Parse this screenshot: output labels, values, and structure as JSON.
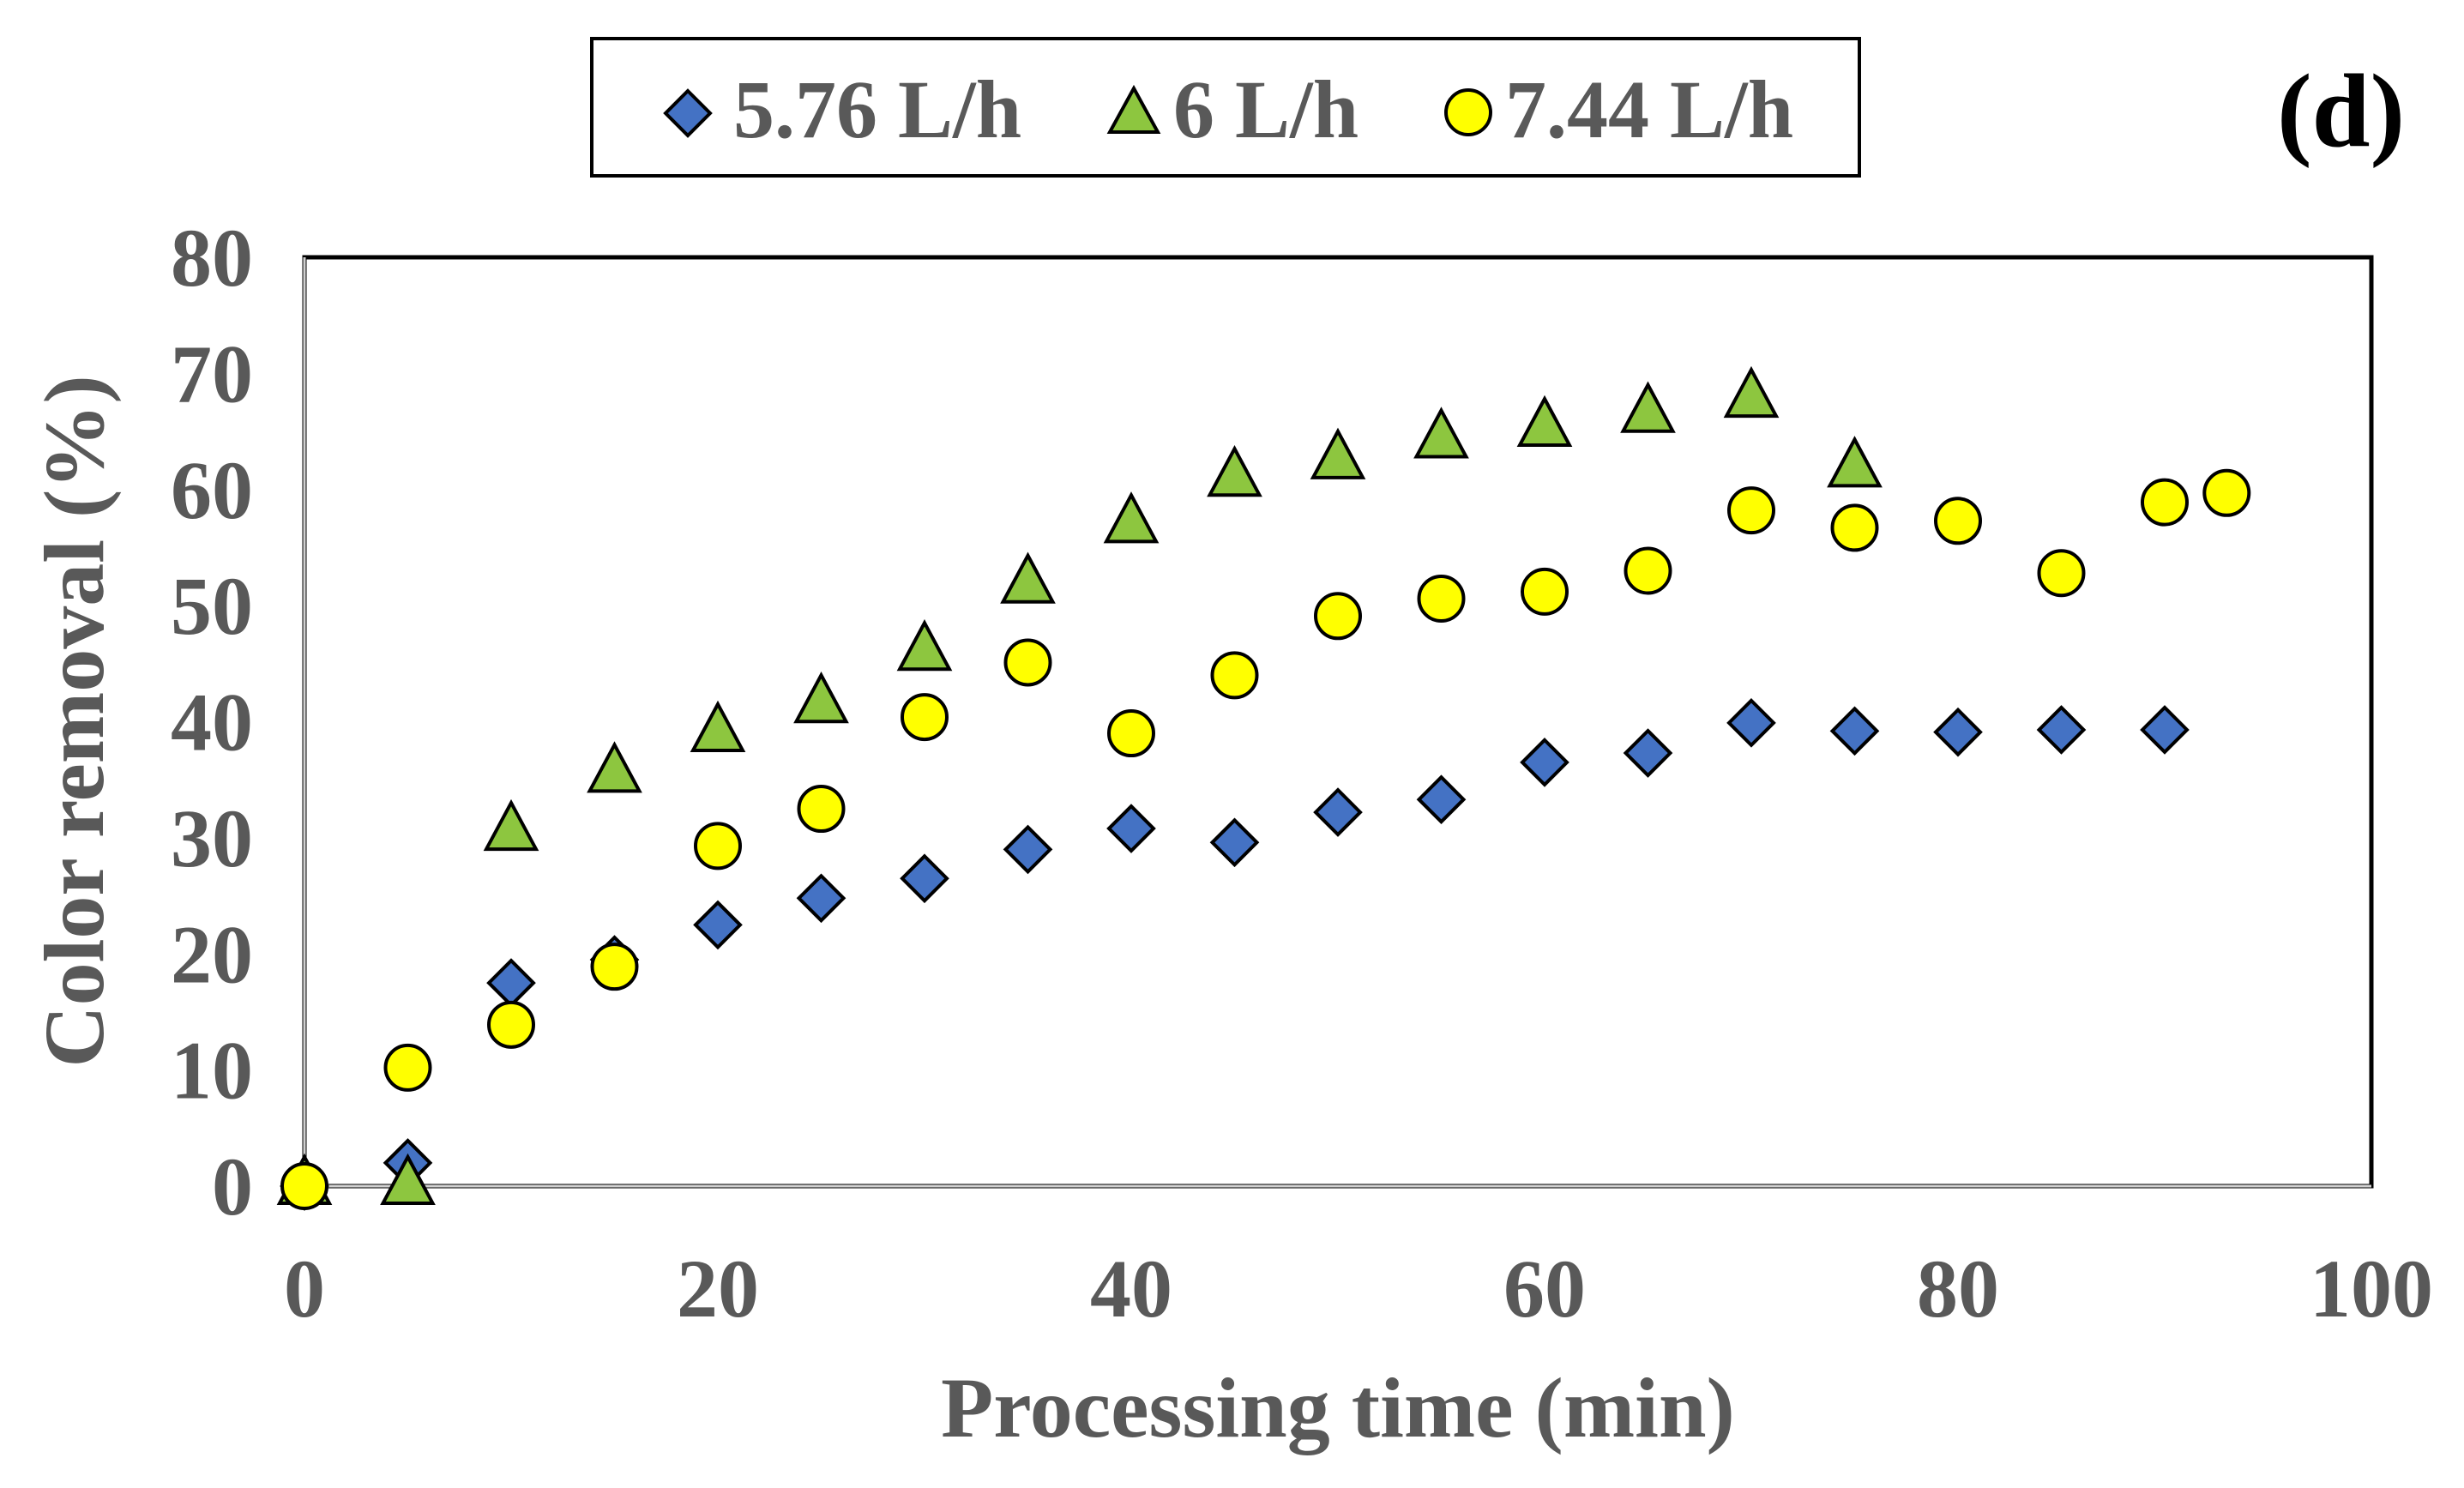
{
  "panel_label": "(d)",
  "chart_data": {
    "type": "scatter",
    "title": "",
    "xlabel": "Processing time (min)",
    "ylabel": "Color removal (%)",
    "xlim": [
      0,
      100
    ],
    "ylim": [
      0,
      80
    ],
    "xticks": [
      0,
      20,
      40,
      60,
      80,
      100
    ],
    "yticks": [
      0,
      10,
      20,
      30,
      40,
      50,
      60,
      70,
      80
    ],
    "grid": false,
    "legend_position": "top",
    "series": [
      {
        "name": "5.76 L/h",
        "marker": "diamond",
        "color": "#4472C4",
        "x": [
          0,
          5,
          10,
          15,
          20,
          25,
          30,
          35,
          40,
          45,
          50,
          55,
          60,
          65,
          70,
          75,
          80,
          85,
          90
        ],
        "y": [
          0,
          2,
          17.5,
          19.5,
          22.5,
          24.8,
          26.5,
          29,
          30.8,
          29.6,
          32.2,
          33.3,
          36.5,
          37.3,
          39.9,
          39.2,
          39.1,
          39.3,
          39.3
        ]
      },
      {
        "name": "6 L/h",
        "marker": "triangle",
        "color": "#8DC63F",
        "x": [
          0,
          5,
          10,
          15,
          20,
          25,
          30,
          35,
          40,
          45,
          50,
          55,
          60,
          65,
          70,
          75
        ],
        "y": [
          0,
          0,
          30.5,
          35.5,
          39,
          41.5,
          46,
          51.8,
          57,
          61,
          62.5,
          64.3,
          65.3,
          66.5,
          67.8,
          61.8
        ]
      },
      {
        "name": "7.44 L/h",
        "marker": "circle",
        "color": "#FFFF00",
        "x": [
          0,
          5,
          10,
          15,
          20,
          25,
          30,
          35,
          40,
          45,
          50,
          55,
          60,
          65,
          70,
          75,
          80,
          85,
          90,
          93
        ],
        "y": [
          0,
          10.2,
          13.9,
          18.9,
          29.3,
          32.5,
          40.4,
          45.1,
          39,
          44,
          49.1,
          50.6,
          51.2,
          53,
          58.2,
          56.7,
          57.3,
          52.8,
          58.9,
          59.7
        ]
      }
    ]
  }
}
